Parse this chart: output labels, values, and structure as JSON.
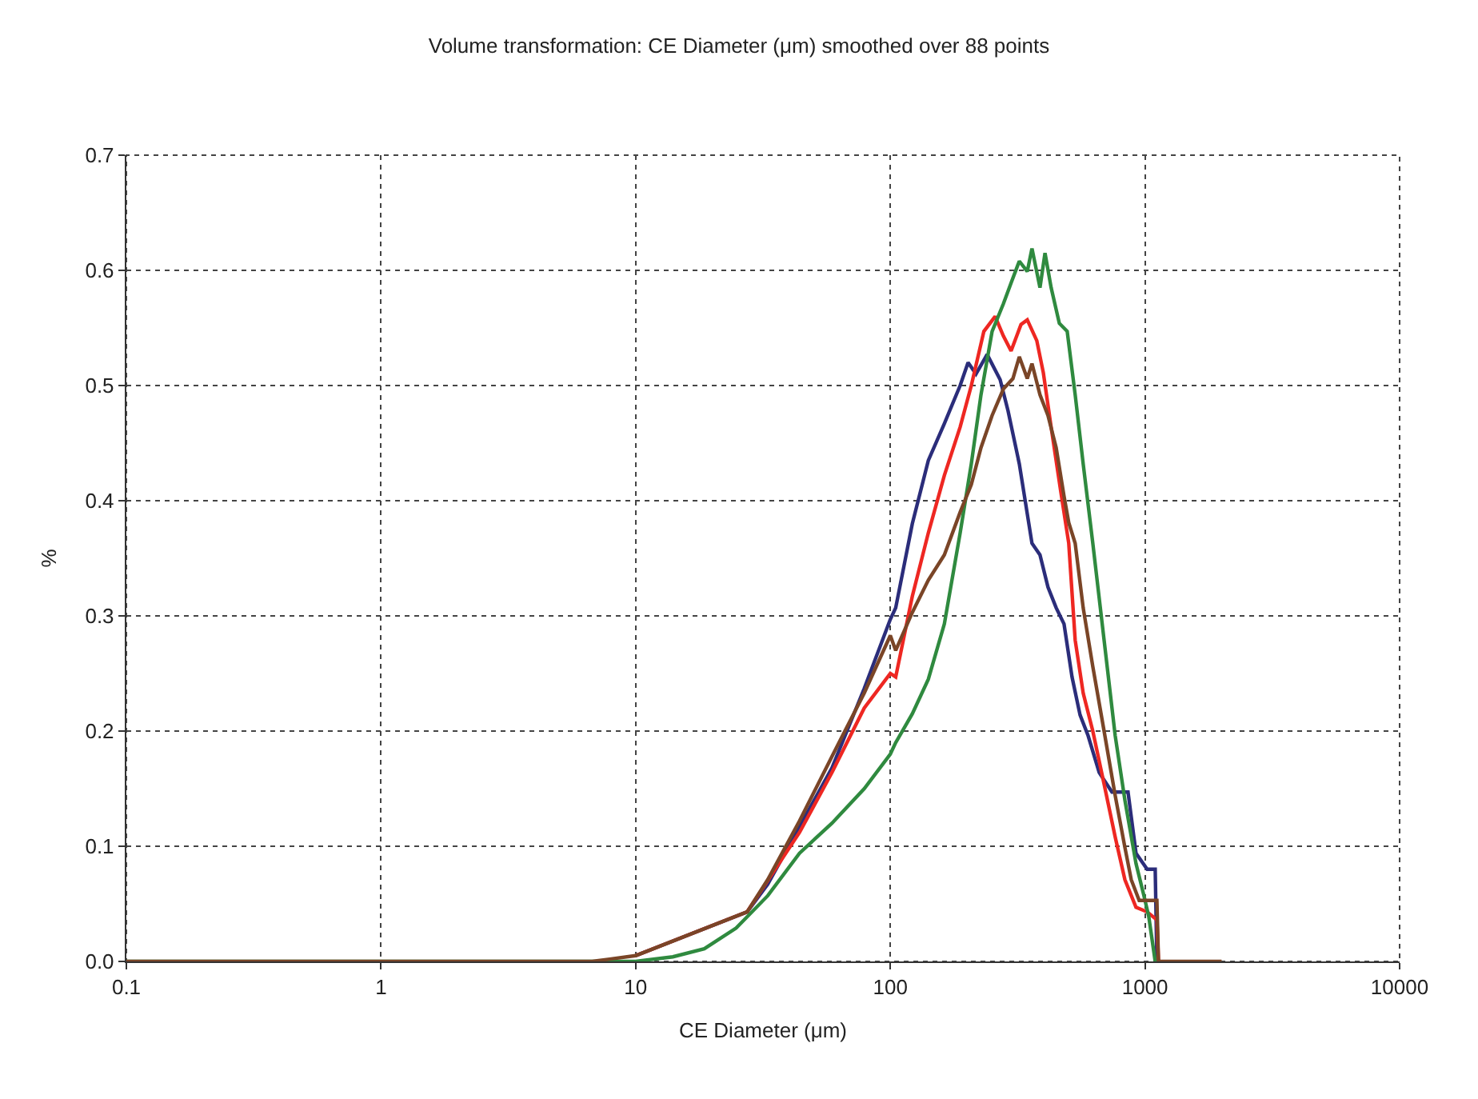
{
  "chart_data": {
    "type": "line",
    "title": "Volume transformation: CE Diameter (μm) smoothed over 88 points",
    "xlabel": "CE Diameter (μm)",
    "ylabel": "%",
    "log": "x",
    "xlim": [
      0.1,
      10000
    ],
    "xticks": [
      0.1,
      1,
      10,
      100,
      1000,
      10000
    ],
    "ylim": [
      0,
      0.7
    ],
    "yticks": [
      {
        "value": 0,
        "label": "0.0"
      },
      0.1,
      0.2,
      0.3,
      0.4,
      0.5,
      0.6,
      0.7
    ],
    "grid": true,
    "line_style": "solid",
    "series": [
      {
        "color": "#2b2d7a",
        "x": [
          10,
          27.4,
          33,
          44,
          59,
          79,
          100,
          105,
          122,
          141,
          163,
          188,
          202,
          217,
          240,
          270,
          290,
          321,
          360,
          387,
          416,
          448,
          481,
          517,
          556,
          598,
          661,
          742,
          858,
          922,
          1020,
          1097,
          1114,
          1146
        ],
        "values": [
          0.005,
          0.043,
          0.067,
          0.117,
          0.168,
          0.237,
          0.297,
          0.307,
          0.38,
          0.435,
          0.467,
          0.5,
          0.52,
          0.51,
          0.527,
          0.505,
          0.478,
          0.432,
          0.363,
          0.353,
          0.325,
          0.307,
          0.293,
          0.247,
          0.214,
          0.196,
          0.164,
          0.147,
          0.147,
          0.094,
          0.08,
          0.08,
          0,
          0
        ]
      },
      {
        "color": "#ee2722",
        "x": [
          10,
          27.4,
          44,
          59,
          79,
          100,
          105,
          122,
          141,
          163,
          188,
          208,
          233,
          258,
          278,
          298,
          326,
          345,
          376,
          399,
          428,
          467,
          502,
          532,
          572,
          624,
          691,
          764,
          834,
          922,
          1020,
          1114,
          1130,
          1146
        ],
        "values": [
          0.005,
          0.043,
          0.112,
          0.164,
          0.22,
          0.25,
          0.247,
          0.317,
          0.372,
          0.422,
          0.464,
          0.5,
          0.547,
          0.56,
          0.543,
          0.53,
          0.553,
          0.557,
          0.539,
          0.511,
          0.464,
          0.408,
          0.363,
          0.279,
          0.233,
          0.2,
          0.154,
          0.108,
          0.071,
          0.047,
          0.043,
          0.036,
          0,
          0
        ]
      },
      {
        "color": "#2f8a3f",
        "x": [
          0.1,
          10,
          14,
          18.6,
          24.8,
          33,
          44,
          59,
          79,
          100,
          105,
          122,
          141,
          163,
          188,
          208,
          227,
          251,
          278,
          298,
          321,
          345,
          360,
          387,
          405,
          428,
          461,
          495,
          532,
          572,
          624,
          691,
          764,
          834,
          922,
          991,
          1035,
          1097,
          1146
        ],
        "values": [
          0,
          0,
          0.004,
          0.011,
          0.029,
          0.057,
          0.094,
          0.12,
          0.15,
          0.18,
          0.19,
          0.215,
          0.245,
          0.293,
          0.372,
          0.432,
          0.492,
          0.547,
          0.571,
          0.589,
          0.608,
          0.599,
          0.619,
          0.585,
          0.615,
          0.585,
          0.554,
          0.547,
          0.492,
          0.432,
          0.363,
          0.279,
          0.196,
          0.14,
          0.085,
          0.057,
          0.039,
          0,
          0
        ]
      },
      {
        "color": "#7a4527",
        "x": [
          0.1,
          6.75,
          10,
          27.4,
          33,
          44,
          59,
          79,
          100,
          105,
          122,
          141,
          163,
          188,
          208,
          227,
          251,
          278,
          303,
          321,
          345,
          360,
          387,
          416,
          448,
          481,
          502,
          532,
          572,
          624,
          691,
          764,
          834,
          883,
          949,
          1114,
          1130,
          1197,
          2000
        ],
        "values": [
          0,
          0,
          0.005,
          0.043,
          0.071,
          0.122,
          0.178,
          0.233,
          0.283,
          0.27,
          0.303,
          0.331,
          0.353,
          0.39,
          0.414,
          0.446,
          0.474,
          0.497,
          0.506,
          0.525,
          0.506,
          0.519,
          0.492,
          0.474,
          0.446,
          0.404,
          0.381,
          0.363,
          0.307,
          0.256,
          0.2,
          0.144,
          0.099,
          0.071,
          0.053,
          0.053,
          0,
          0,
          0
        ]
      }
    ]
  }
}
